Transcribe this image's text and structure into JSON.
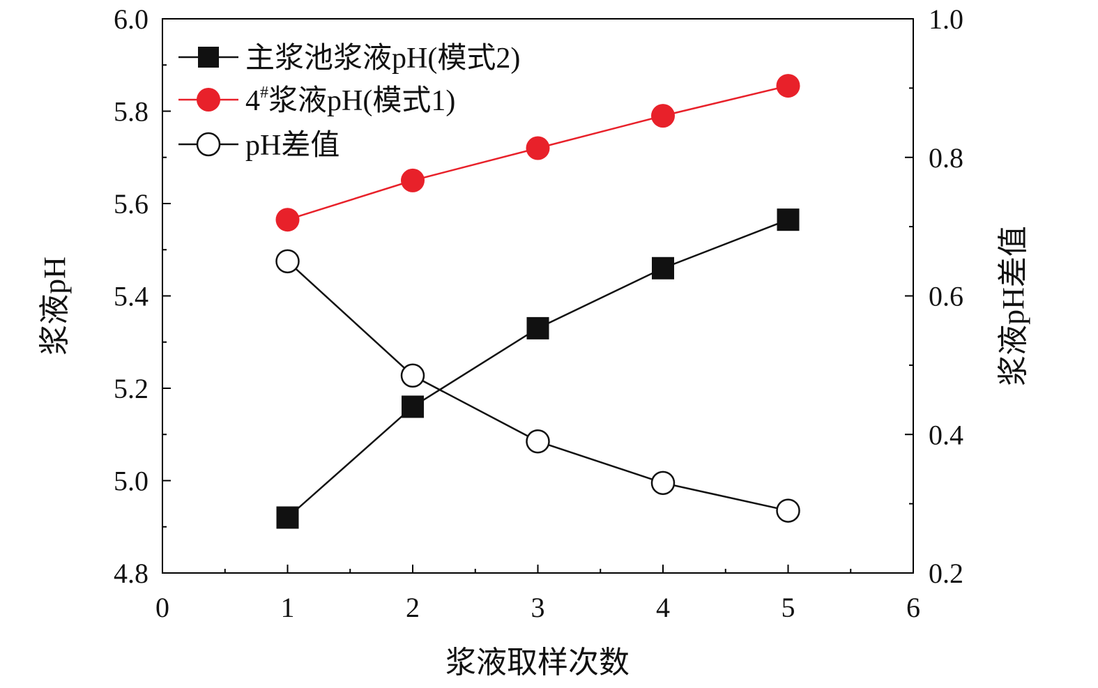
{
  "chart_data": {
    "type": "line",
    "xlabel": "浆液取样次数",
    "ylabel": "浆液pH",
    "y2label": "浆液pH差值",
    "xlim": [
      0,
      6
    ],
    "ylim": [
      4.8,
      6.0
    ],
    "y2lim": [
      0.2,
      1.0
    ],
    "x_ticks": [
      "0",
      "1",
      "2",
      "3",
      "4",
      "5",
      "6"
    ],
    "y_ticks": [
      "4.8",
      "5.0",
      "5.2",
      "5.4",
      "5.6",
      "5.8",
      "6.0"
    ],
    "y2_ticks": [
      "0.2",
      "0.4",
      "0.6",
      "0.8",
      "1.0"
    ],
    "grid": false,
    "legend_position": "top-left",
    "x": [
      1,
      2,
      3,
      4,
      5
    ],
    "series": [
      {
        "name": "主浆池浆液pH(模式2)",
        "axis": "left",
        "marker": "filled-square",
        "color": "#111111",
        "values": [
          4.92,
          5.16,
          5.33,
          5.46,
          5.565
        ]
      },
      {
        "name": "4#浆液pH(模式1)",
        "name_main": "4",
        "name_sup": "#",
        "name_rest": "浆液pH(模式1)",
        "axis": "left",
        "marker": "filled-circle",
        "color": "#e8212a",
        "values": [
          5.565,
          5.65,
          5.72,
          5.79,
          5.855
        ]
      },
      {
        "name": "pH差值",
        "axis": "right",
        "marker": "open-circle",
        "color": "#111111",
        "values": [
          0.65,
          0.485,
          0.39,
          0.33,
          0.29
        ]
      }
    ]
  }
}
